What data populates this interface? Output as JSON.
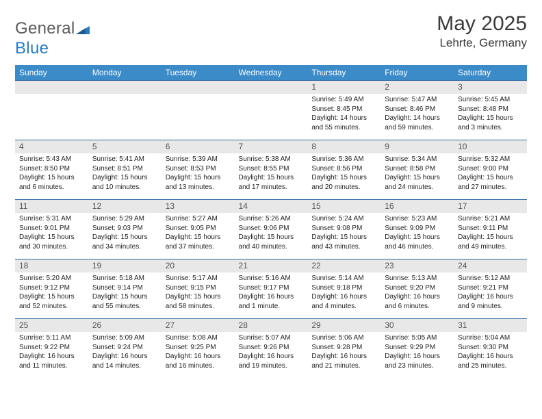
{
  "brand": {
    "part1": "General",
    "part2": "Blue"
  },
  "title": "May 2025",
  "location": "Lehrte, Germany",
  "colors": {
    "header_bg": "#3b8bc9",
    "header_text": "#ffffff",
    "row_divider": "#2f6aa0",
    "daynum_bg": "#e8e8e8",
    "daynum_text": "#555555",
    "body_text": "#222222",
    "title_text": "#3a3a3a",
    "logo_gray": "#5a5a5a",
    "logo_blue": "#2b7bbf",
    "page_bg": "#ffffff"
  },
  "typography": {
    "title_fontsize": 30,
    "location_fontsize": 17,
    "logo_fontsize": 24,
    "weekday_fontsize": 12,
    "daynum_fontsize": 12,
    "body_fontsize": 10
  },
  "weekdays": [
    "Sunday",
    "Monday",
    "Tuesday",
    "Wednesday",
    "Thursday",
    "Friday",
    "Saturday"
  ],
  "weeks": [
    [
      null,
      null,
      null,
      null,
      {
        "n": "1",
        "sunrise": "Sunrise: 5:49 AM",
        "sunset": "Sunset: 8:45 PM",
        "daylight": "Daylight: 14 hours and 55 minutes."
      },
      {
        "n": "2",
        "sunrise": "Sunrise: 5:47 AM",
        "sunset": "Sunset: 8:46 PM",
        "daylight": "Daylight: 14 hours and 59 minutes."
      },
      {
        "n": "3",
        "sunrise": "Sunrise: 5:45 AM",
        "sunset": "Sunset: 8:48 PM",
        "daylight": "Daylight: 15 hours and 3 minutes."
      }
    ],
    [
      {
        "n": "4",
        "sunrise": "Sunrise: 5:43 AM",
        "sunset": "Sunset: 8:50 PM",
        "daylight": "Daylight: 15 hours and 6 minutes."
      },
      {
        "n": "5",
        "sunrise": "Sunrise: 5:41 AM",
        "sunset": "Sunset: 8:51 PM",
        "daylight": "Daylight: 15 hours and 10 minutes."
      },
      {
        "n": "6",
        "sunrise": "Sunrise: 5:39 AM",
        "sunset": "Sunset: 8:53 PM",
        "daylight": "Daylight: 15 hours and 13 minutes."
      },
      {
        "n": "7",
        "sunrise": "Sunrise: 5:38 AM",
        "sunset": "Sunset: 8:55 PM",
        "daylight": "Daylight: 15 hours and 17 minutes."
      },
      {
        "n": "8",
        "sunrise": "Sunrise: 5:36 AM",
        "sunset": "Sunset: 8:56 PM",
        "daylight": "Daylight: 15 hours and 20 minutes."
      },
      {
        "n": "9",
        "sunrise": "Sunrise: 5:34 AM",
        "sunset": "Sunset: 8:58 PM",
        "daylight": "Daylight: 15 hours and 24 minutes."
      },
      {
        "n": "10",
        "sunrise": "Sunrise: 5:32 AM",
        "sunset": "Sunset: 9:00 PM",
        "daylight": "Daylight: 15 hours and 27 minutes."
      }
    ],
    [
      {
        "n": "11",
        "sunrise": "Sunrise: 5:31 AM",
        "sunset": "Sunset: 9:01 PM",
        "daylight": "Daylight: 15 hours and 30 minutes."
      },
      {
        "n": "12",
        "sunrise": "Sunrise: 5:29 AM",
        "sunset": "Sunset: 9:03 PM",
        "daylight": "Daylight: 15 hours and 34 minutes."
      },
      {
        "n": "13",
        "sunrise": "Sunrise: 5:27 AM",
        "sunset": "Sunset: 9:05 PM",
        "daylight": "Daylight: 15 hours and 37 minutes."
      },
      {
        "n": "14",
        "sunrise": "Sunrise: 5:26 AM",
        "sunset": "Sunset: 9:06 PM",
        "daylight": "Daylight: 15 hours and 40 minutes."
      },
      {
        "n": "15",
        "sunrise": "Sunrise: 5:24 AM",
        "sunset": "Sunset: 9:08 PM",
        "daylight": "Daylight: 15 hours and 43 minutes."
      },
      {
        "n": "16",
        "sunrise": "Sunrise: 5:23 AM",
        "sunset": "Sunset: 9:09 PM",
        "daylight": "Daylight: 15 hours and 46 minutes."
      },
      {
        "n": "17",
        "sunrise": "Sunrise: 5:21 AM",
        "sunset": "Sunset: 9:11 PM",
        "daylight": "Daylight: 15 hours and 49 minutes."
      }
    ],
    [
      {
        "n": "18",
        "sunrise": "Sunrise: 5:20 AM",
        "sunset": "Sunset: 9:12 PM",
        "daylight": "Daylight: 15 hours and 52 minutes."
      },
      {
        "n": "19",
        "sunrise": "Sunrise: 5:18 AM",
        "sunset": "Sunset: 9:14 PM",
        "daylight": "Daylight: 15 hours and 55 minutes."
      },
      {
        "n": "20",
        "sunrise": "Sunrise: 5:17 AM",
        "sunset": "Sunset: 9:15 PM",
        "daylight": "Daylight: 15 hours and 58 minutes."
      },
      {
        "n": "21",
        "sunrise": "Sunrise: 5:16 AM",
        "sunset": "Sunset: 9:17 PM",
        "daylight": "Daylight: 16 hours and 1 minute."
      },
      {
        "n": "22",
        "sunrise": "Sunrise: 5:14 AM",
        "sunset": "Sunset: 9:18 PM",
        "daylight": "Daylight: 16 hours and 4 minutes."
      },
      {
        "n": "23",
        "sunrise": "Sunrise: 5:13 AM",
        "sunset": "Sunset: 9:20 PM",
        "daylight": "Daylight: 16 hours and 6 minutes."
      },
      {
        "n": "24",
        "sunrise": "Sunrise: 5:12 AM",
        "sunset": "Sunset: 9:21 PM",
        "daylight": "Daylight: 16 hours and 9 minutes."
      }
    ],
    [
      {
        "n": "25",
        "sunrise": "Sunrise: 5:11 AM",
        "sunset": "Sunset: 9:22 PM",
        "daylight": "Daylight: 16 hours and 11 minutes."
      },
      {
        "n": "26",
        "sunrise": "Sunrise: 5:09 AM",
        "sunset": "Sunset: 9:24 PM",
        "daylight": "Daylight: 16 hours and 14 minutes."
      },
      {
        "n": "27",
        "sunrise": "Sunrise: 5:08 AM",
        "sunset": "Sunset: 9:25 PM",
        "daylight": "Daylight: 16 hours and 16 minutes."
      },
      {
        "n": "28",
        "sunrise": "Sunrise: 5:07 AM",
        "sunset": "Sunset: 9:26 PM",
        "daylight": "Daylight: 16 hours and 19 minutes."
      },
      {
        "n": "29",
        "sunrise": "Sunrise: 5:06 AM",
        "sunset": "Sunset: 9:28 PM",
        "daylight": "Daylight: 16 hours and 21 minutes."
      },
      {
        "n": "30",
        "sunrise": "Sunrise: 5:05 AM",
        "sunset": "Sunset: 9:29 PM",
        "daylight": "Daylight: 16 hours and 23 minutes."
      },
      {
        "n": "31",
        "sunrise": "Sunrise: 5:04 AM",
        "sunset": "Sunset: 9:30 PM",
        "daylight": "Daylight: 16 hours and 25 minutes."
      }
    ]
  ]
}
